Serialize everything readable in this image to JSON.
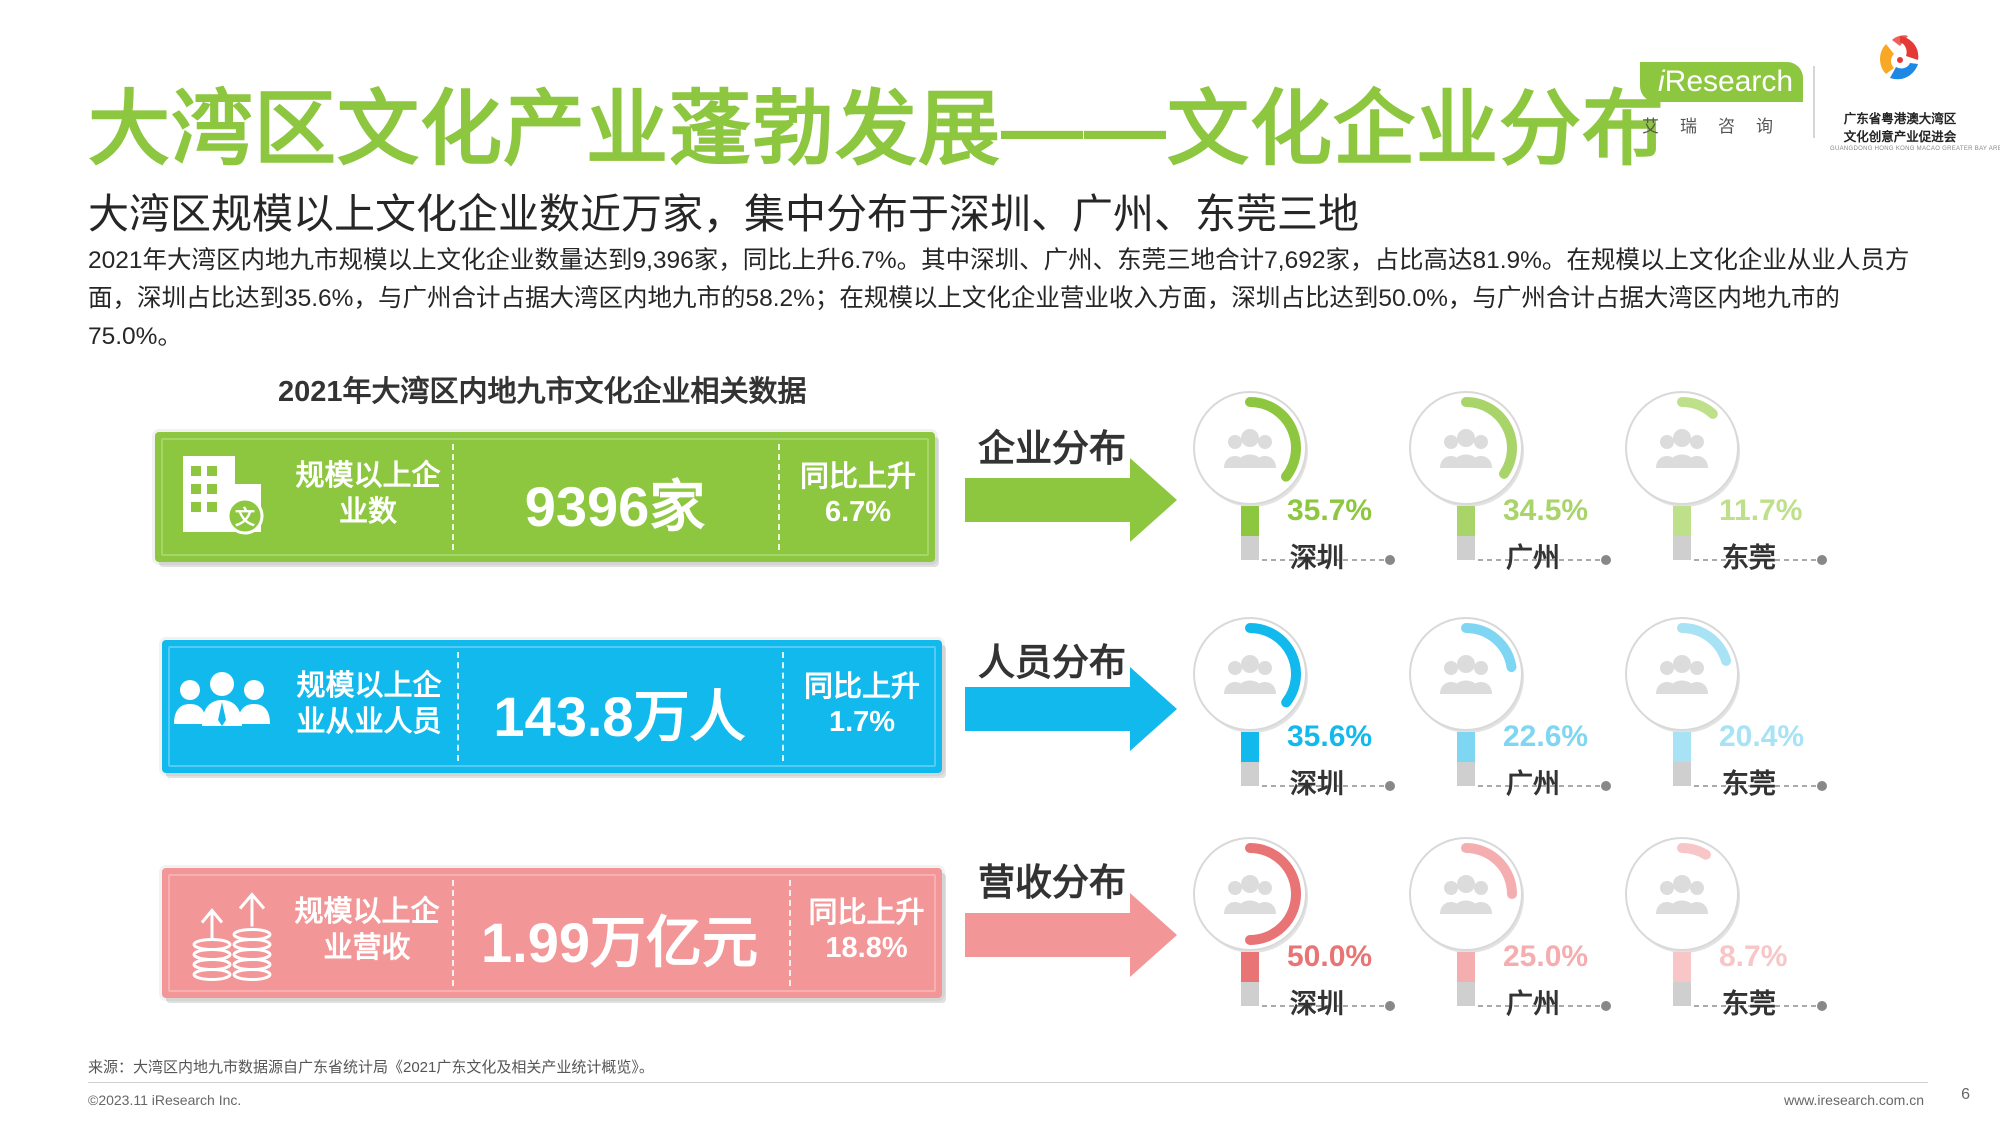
{
  "header": {
    "title": "大湾区文化产业蓬勃发展——文化企业分布",
    "subtitle": "大湾区规模以上文化企业数近万家，集中分布于深圳、广州、东莞三地",
    "body": "2021年大湾区内地九市规模以上文化企业数量达到9,396家，同比上升6.7%。其中深圳、广州、东莞三地合计7,692家，占比高达81.9%。在规模以上文化企业从业人员方面，深圳占比达到35.6%，与广州合计占据大湾区内地九市的58.2%；在规模以上文化企业营业收入方面，深圳占比达到50.0%，与广州合计占据大湾区内地九市的75.0%。"
  },
  "logos": {
    "iresearch_i": "i",
    "iresearch_rest": "Research",
    "iresearch_cn": "艾瑞咨询",
    "gba_line1": "广东省粤港澳大湾区",
    "gba_line2": "文化创意产业促进会",
    "gba_en": "GUANGDONG HONG KONG MACAO GREATER BAY AREA"
  },
  "chart_heading": "2021年大湾区内地九市文化企业相关数据",
  "stats": [
    {
      "label_line1": "规模以上企",
      "label_line2": "业数",
      "value": "9396家",
      "growth_line1": "同比上升",
      "growth_line2": "6.7%",
      "icon": "building-icon"
    },
    {
      "label_line1": "规模以上企",
      "label_line2": "业从业人员",
      "value": "143.8万人",
      "growth_line1": "同比上升",
      "growth_line2": "1.7%",
      "icon": "people-icon"
    },
    {
      "label_line1": "规模以上企",
      "label_line2": "业营收",
      "value": "1.99万亿元",
      "growth_line1": "同比上升",
      "growth_line2": "18.8%",
      "icon": "coin-stack-icon"
    }
  ],
  "distributions": [
    {
      "label": "企业分布",
      "color": "#8DC63F",
      "cities": [
        {
          "name": "深圳",
          "percent": "35.7%",
          "share": 0.357
        },
        {
          "name": "广州",
          "percent": "34.5%",
          "share": 0.345
        },
        {
          "name": "东莞",
          "percent": "11.7%",
          "share": 0.117
        }
      ]
    },
    {
      "label": "人员分布",
      "color": "#12B9EC",
      "cities": [
        {
          "name": "深圳",
          "percent": "35.6%",
          "share": 0.356
        },
        {
          "name": "广州",
          "percent": "22.6%",
          "share": 0.226
        },
        {
          "name": "东莞",
          "percent": "20.4%",
          "share": 0.204
        }
      ]
    },
    {
      "label": "营收分布",
      "color": "#F08080",
      "cities": [
        {
          "name": "深圳",
          "percent": "50.0%",
          "share": 0.5
        },
        {
          "name": "广州",
          "percent": "25.0%",
          "share": 0.25
        },
        {
          "name": "东莞",
          "percent": "8.7%",
          "share": 0.087
        }
      ]
    }
  ],
  "colors": {
    "green": "#8DC63F",
    "green_light": "#A9D46A",
    "green_lighter": "#BFE08A",
    "blue": "#12B9EC",
    "blue_light": "#7FD6F3",
    "blue_lighter": "#A8E2F5",
    "pink": "#E87476",
    "pink_light": "#F5AEB0",
    "pink_lighter": "#F8C6C7"
  },
  "footer": {
    "source": "来源：大湾区内地九市数据源自广东省统计局《2021广东文化及相关产业统计概览》。",
    "copyright": "©2023.11 iResearch Inc.",
    "url": "www.iresearch.com.cn",
    "page": "6"
  }
}
